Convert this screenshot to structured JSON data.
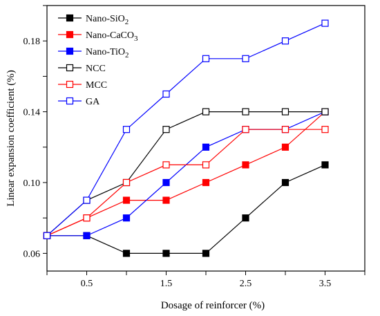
{
  "chart_data": {
    "type": "line",
    "xlabel": "Dosage of reinforcer (%)",
    "ylabel": "Linear expansion coefficient (%)",
    "xlim": [
      0,
      4
    ],
    "ylim": [
      0.05,
      0.2
    ],
    "x_ticks": [
      0,
      0.5,
      1,
      1.5,
      2,
      2.5,
      3,
      3.5,
      4
    ],
    "x_tick_labels": [
      "",
      "0.5",
      "",
      "1.5",
      "",
      "2.5",
      "",
      "3.5",
      ""
    ],
    "y_ticks": [
      0.06,
      0.08,
      0.1,
      0.12,
      0.14,
      0.16,
      0.18,
      0.2
    ],
    "y_tick_labels": [
      "0.06",
      "",
      "0.10",
      "",
      "0.14",
      "",
      "0.18",
      ""
    ],
    "legend_placement": "top-left",
    "grid": false,
    "x": [
      0,
      0.5,
      1,
      1.5,
      2,
      2.5,
      3,
      3.5
    ],
    "series": [
      {
        "name_main": "Nano-SiO",
        "name_sub": "2",
        "name_tail": "",
        "color": "#000000",
        "marker": "filled-square",
        "values": [
          0.07,
          0.07,
          0.06,
          0.06,
          0.06,
          0.08,
          0.1,
          0.11
        ]
      },
      {
        "name_main": "Nano-CaCO",
        "name_sub": "3",
        "name_tail": "",
        "color": "#ff0000",
        "marker": "filled-square",
        "values": [
          0.07,
          0.08,
          0.09,
          0.09,
          0.1,
          0.11,
          0.12,
          0.14
        ]
      },
      {
        "name_main": "Nano-TiO",
        "name_sub": "2",
        "name_tail": "",
        "color": "#0000ff",
        "marker": "filled-square",
        "values": [
          0.07,
          0.07,
          0.08,
          0.1,
          0.12,
          0.13,
          0.13,
          0.14
        ]
      },
      {
        "name_main": "NCC",
        "name_sub": "",
        "name_tail": "",
        "color": "#000000",
        "marker": "open-square",
        "values": [
          0.07,
          0.09,
          0.1,
          0.13,
          0.14,
          0.14,
          0.14,
          0.14
        ]
      },
      {
        "name_main": "MCC",
        "name_sub": "",
        "name_tail": "",
        "color": "#ff0000",
        "marker": "open-square",
        "values": [
          0.07,
          0.08,
          0.1,
          0.11,
          0.11,
          0.13,
          0.13,
          0.13
        ]
      },
      {
        "name_main": "GA",
        "name_sub": "",
        "name_tail": "",
        "color": "#0000ff",
        "marker": "open-square",
        "values": [
          0.07,
          0.09,
          0.13,
          0.15,
          0.17,
          0.17,
          0.18,
          0.19
        ]
      }
    ]
  }
}
